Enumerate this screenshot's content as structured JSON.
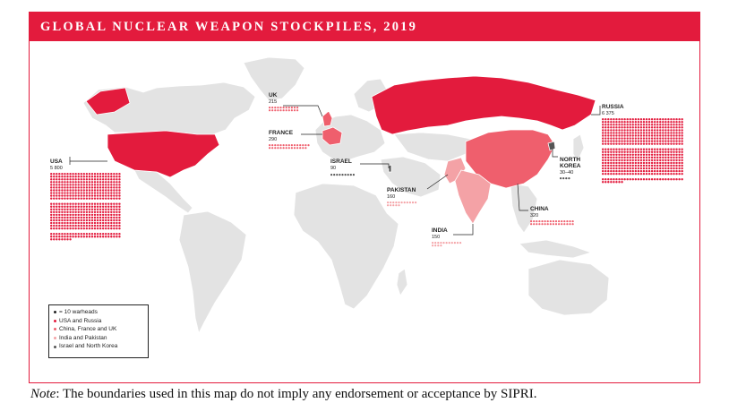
{
  "title": "GLOBAL NUCLEAR WEAPON STOCKPILES, 2019",
  "note": {
    "label": "Note",
    "text": ": The boundaries used in this map do not imply any endorsement or acceptance by SIPRI."
  },
  "colors": {
    "tier1": "#e31b3d",
    "tier2": "#ef5f6d",
    "tier3": "#f4a2a6",
    "tier4": "#555555",
    "land": "#e3e3e3",
    "banner": "#e31b3d"
  },
  "legend": [
    {
      "text": "= 10 warheads",
      "tier": "key"
    },
    {
      "text": "USA and Russia",
      "tier": "tier1"
    },
    {
      "text": "China, France and UK",
      "tier": "tier2"
    },
    {
      "text": "India and Pakistan",
      "tier": "tier3"
    },
    {
      "text": "Israel and North Korea",
      "tier": "tier4"
    }
  ],
  "countries": [
    {
      "name": "USA",
      "warheads": "5 800",
      "count": 5800,
      "tier": "tier1"
    },
    {
      "name": "RUSSIA",
      "warheads": "6 375",
      "count": 6375,
      "tier": "tier1"
    },
    {
      "name": "UK",
      "warheads": "215",
      "count": 215,
      "tier": "tier2"
    },
    {
      "name": "FRANCE",
      "warheads": "290",
      "count": 290,
      "tier": "tier2"
    },
    {
      "name": "CHINA",
      "warheads": "320",
      "count": 320,
      "tier": "tier2"
    },
    {
      "name": "ISRAEL",
      "warheads": "90",
      "count": 90,
      "tier": "tier4"
    },
    {
      "name": "PAKISTAN",
      "warheads": "160",
      "count": 160,
      "tier": "tier3"
    },
    {
      "name": "INDIA",
      "warheads": "150",
      "count": 150,
      "tier": "tier3"
    },
    {
      "name": "NORTH KOREA",
      "name_line2": "KOREA",
      "name_line1": "NORTH",
      "warheads": "30–40",
      "count": 35,
      "tier": "tier4"
    }
  ]
}
